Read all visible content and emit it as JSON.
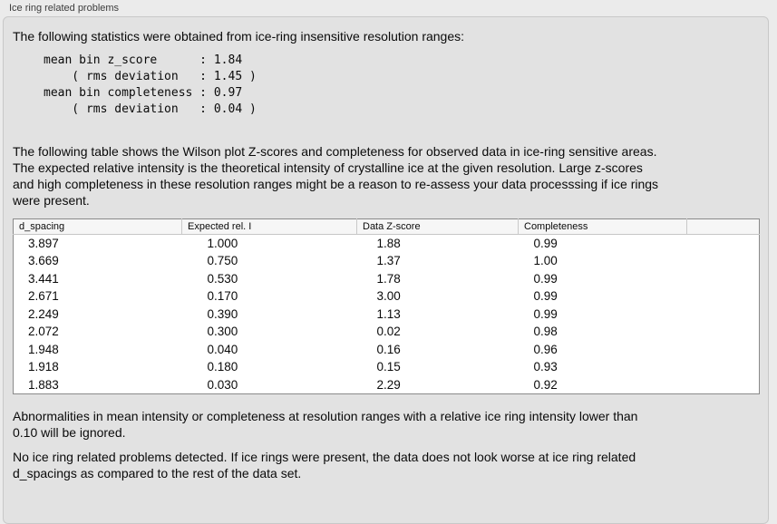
{
  "panel": {
    "title": "Ice ring related problems",
    "intro": "The following statistics were obtained from ice-ring insensitive resolution ranges:",
    "stats_block": "mean bin z_score      : 1.84\n    ( rms deviation   : 1.45 )\nmean bin completeness : 0.97\n    ( rms deviation   : 0.04 )",
    "stats": {
      "mean_bin_z_score": "1.84",
      "z_score_rms_deviation": "1.45",
      "mean_bin_completeness": "0.97",
      "completeness_rms_deviation": "0.04"
    },
    "description": "The following table shows the Wilson plot Z-scores and completeness for observed data in ice-ring sensitive areas.\nThe expected relative intensity is the theoretical intensity of crystalline ice at the given resolution. Large z-scores\nand high completeness in these resolution ranges might be a reason to re-assess your data processsing if ice rings\nwere present.",
    "ignore_note": "Abnormalities in mean intensity or completeness at resolution ranges with a relative ice ring intensity lower than\n0.10 will be ignored.",
    "conclusion": "No ice ring related problems detected. If ice rings were present, the data does not look worse at ice ring related\nd_spacings as compared to the rest of the data set."
  },
  "table": {
    "columns": [
      "d_spacing",
      "Expected rel. I",
      "Data Z-score",
      "Completeness",
      ""
    ],
    "rows": [
      [
        "3.897",
        "1.000",
        "1.88",
        "0.99"
      ],
      [
        "3.669",
        "0.750",
        "1.37",
        "1.00"
      ],
      [
        "3.441",
        "0.530",
        "1.78",
        "0.99"
      ],
      [
        "2.671",
        "0.170",
        "3.00",
        "0.99"
      ],
      [
        "2.249",
        "0.390",
        "1.13",
        "0.99"
      ],
      [
        "2.072",
        "0.300",
        "0.02",
        "0.98"
      ],
      [
        "1.948",
        "0.040",
        "0.16",
        "0.96"
      ],
      [
        "1.918",
        "0.180",
        "0.15",
        "0.93"
      ],
      [
        "1.883",
        "0.030",
        "2.29",
        "0.92"
      ]
    ]
  },
  "colors": {
    "page_background": "#ebebeb",
    "box_background": "#e2e2e2",
    "box_border": "#c8c8c8",
    "table_border": "#8a8a8a",
    "header_background": "#f6f6f6",
    "text": "#0a0a0a"
  }
}
